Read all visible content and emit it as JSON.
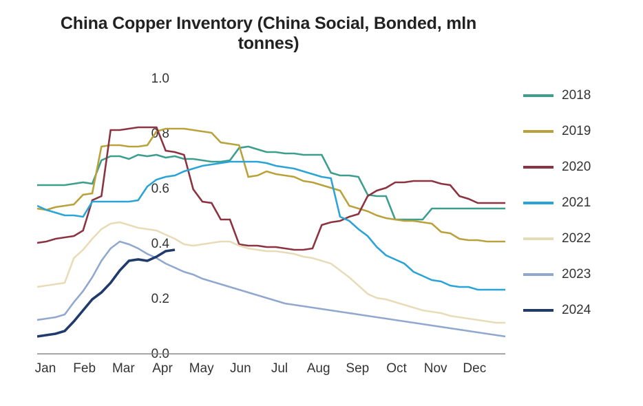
{
  "chart": {
    "type": "line",
    "title": "China Copper Inventory (China Social, Bonded, mln tonnes)",
    "title_fontsize": 25,
    "background_color": "#ffffff",
    "grid_color": "#e6e6e6",
    "baseline_color": "#888888",
    "baseline_width": 3,
    "axis_text_color": "#333333",
    "tick_fontsize": 19,
    "legend_fontsize": 19,
    "legend_swatch_width": 44,
    "legend_swatch_stroke": 4,
    "series_stroke_width": 2.6,
    "ylim": [
      0.0,
      1.0
    ],
    "ytick_step": 0.2,
    "yticks": [
      "0.0",
      "0.2",
      "0.4",
      "0.6",
      "0.8",
      "1.0"
    ],
    "xlabels": [
      "Jan",
      "Feb",
      "Mar",
      "Apr",
      "May",
      "Jun",
      "Jul",
      "Aug",
      "Sep",
      "Oct",
      "Nov",
      "Dec"
    ],
    "x_count": 52,
    "series": [
      {
        "name": "2018",
        "label": "2018",
        "color": "#3e9e8e",
        "values": [
          0.615,
          0.615,
          0.615,
          0.615,
          0.62,
          0.625,
          0.62,
          0.705,
          0.72,
          0.72,
          0.71,
          0.725,
          0.72,
          0.725,
          0.715,
          0.72,
          0.71,
          0.71,
          0.705,
          0.7,
          0.7,
          0.705,
          0.75,
          0.755,
          0.745,
          0.735,
          0.735,
          0.73,
          0.73,
          0.725,
          0.725,
          0.725,
          0.66,
          0.65,
          0.65,
          0.645,
          0.58,
          0.575,
          0.575,
          0.49,
          0.49,
          0.49,
          0.49,
          0.53,
          0.53,
          0.53,
          0.53,
          0.53,
          0.53,
          0.53,
          0.53,
          0.53
        ]
      },
      {
        "name": "2019",
        "label": "2019",
        "color": "#b9a23b",
        "values": [
          0.53,
          0.525,
          0.535,
          0.54,
          0.545,
          0.58,
          0.585,
          0.755,
          0.76,
          0.76,
          0.755,
          0.755,
          0.76,
          0.81,
          0.82,
          0.82,
          0.82,
          0.815,
          0.81,
          0.805,
          0.77,
          0.765,
          0.76,
          0.645,
          0.65,
          0.665,
          0.655,
          0.65,
          0.645,
          0.63,
          0.625,
          0.615,
          0.605,
          0.595,
          0.54,
          0.53,
          0.52,
          0.505,
          0.495,
          0.49,
          0.485,
          0.485,
          0.48,
          0.475,
          0.445,
          0.44,
          0.42,
          0.415,
          0.415,
          0.41,
          0.41,
          0.41
        ]
      },
      {
        "name": "2020",
        "label": "2020",
        "color": "#8b3340",
        "values": [
          0.405,
          0.41,
          0.42,
          0.425,
          0.43,
          0.45,
          0.56,
          0.575,
          0.815,
          0.815,
          0.82,
          0.825,
          0.825,
          0.825,
          0.74,
          0.735,
          0.725,
          0.6,
          0.555,
          0.55,
          0.49,
          0.49,
          0.4,
          0.395,
          0.395,
          0.39,
          0.39,
          0.385,
          0.38,
          0.38,
          0.385,
          0.47,
          0.48,
          0.485,
          0.5,
          0.51,
          0.575,
          0.595,
          0.605,
          0.625,
          0.625,
          0.63,
          0.63,
          0.63,
          0.62,
          0.615,
          0.575,
          0.565,
          0.55,
          0.55,
          0.55,
          0.55
        ]
      },
      {
        "name": "2021",
        "label": "2021",
        "color": "#2aa4d6",
        "values": [
          0.54,
          0.525,
          0.515,
          0.505,
          0.505,
          0.5,
          0.555,
          0.555,
          0.555,
          0.555,
          0.555,
          0.56,
          0.61,
          0.635,
          0.645,
          0.65,
          0.665,
          0.675,
          0.685,
          0.69,
          0.695,
          0.7,
          0.7,
          0.7,
          0.7,
          0.695,
          0.685,
          0.68,
          0.675,
          0.665,
          0.655,
          0.645,
          0.64,
          0.5,
          0.485,
          0.455,
          0.43,
          0.39,
          0.36,
          0.345,
          0.33,
          0.3,
          0.285,
          0.27,
          0.265,
          0.25,
          0.245,
          0.245,
          0.235,
          0.235,
          0.235,
          0.235
        ]
      },
      {
        "name": "2022",
        "label": "2022",
        "color": "#e8dcb8",
        "values": [
          0.245,
          0.25,
          0.255,
          0.26,
          0.35,
          0.38,
          0.42,
          0.455,
          0.475,
          0.48,
          0.47,
          0.46,
          0.455,
          0.45,
          0.435,
          0.42,
          0.4,
          0.395,
          0.4,
          0.405,
          0.41,
          0.41,
          0.395,
          0.385,
          0.38,
          0.375,
          0.375,
          0.37,
          0.365,
          0.355,
          0.35,
          0.34,
          0.33,
          0.305,
          0.28,
          0.25,
          0.22,
          0.205,
          0.2,
          0.19,
          0.18,
          0.17,
          0.16,
          0.155,
          0.15,
          0.14,
          0.135,
          0.13,
          0.125,
          0.12,
          0.115,
          0.115
        ]
      },
      {
        "name": "2023",
        "label": "2023",
        "color": "#90a7cf",
        "values": [
          0.125,
          0.13,
          0.135,
          0.145,
          0.19,
          0.23,
          0.28,
          0.34,
          0.385,
          0.41,
          0.4,
          0.385,
          0.365,
          0.35,
          0.33,
          0.315,
          0.3,
          0.29,
          0.275,
          0.265,
          0.255,
          0.245,
          0.235,
          0.225,
          0.215,
          0.205,
          0.195,
          0.185,
          0.18,
          0.175,
          0.17,
          0.165,
          0.16,
          0.155,
          0.15,
          0.145,
          0.14,
          0.135,
          0.13,
          0.125,
          0.12,
          0.115,
          0.11,
          0.105,
          0.1,
          0.095,
          0.09,
          0.085,
          0.08,
          0.075,
          0.07,
          0.065
        ]
      },
      {
        "name": "2024",
        "label": "2024",
        "color": "#1f3a6b",
        "stroke_width": 3.6,
        "values": [
          0.065,
          0.07,
          0.075,
          0.085,
          0.12,
          0.16,
          0.2,
          0.225,
          0.26,
          0.305,
          0.34,
          0.345,
          0.34,
          0.355,
          0.375,
          0.38
        ]
      }
    ]
  }
}
